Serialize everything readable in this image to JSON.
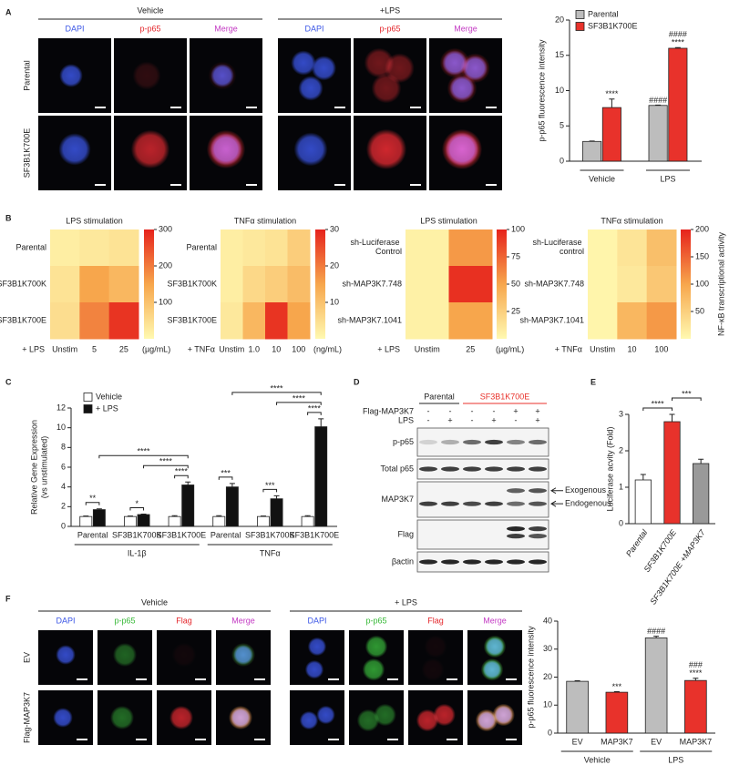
{
  "chart_data": [
    {
      "type": "micrograph",
      "letter": "A",
      "groups": [
        "Vehicle",
        "+LPS"
      ],
      "channels": [
        {
          "label": "DAPI",
          "color": "#3b56e6"
        },
        {
          "label": "p-p65",
          "color": "#e4262b"
        },
        {
          "label": "Merge",
          "color": "#c43cc4"
        }
      ],
      "rows": [
        "Parental",
        "SF3B1K700E"
      ]
    },
    {
      "type": "bar",
      "ylabel": "p-p65 fluorescence intensity",
      "categories": [
        "Vehicle",
        "LPS"
      ],
      "series": [
        {
          "name": "Parental",
          "color": "#bdbdbd",
          "values": [
            2.8,
            7.9
          ],
          "errors": [
            0.05,
            0.05
          ],
          "annotations": [
            {
              "index": 1,
              "labels": [
                "####"
              ]
            }
          ]
        },
        {
          "name": "SF3B1K700E",
          "color": "#e8322b",
          "values": [
            7.6,
            16
          ],
          "errors": [
            1.2,
            0.1
          ],
          "annotations": [
            {
              "index": 0,
              "labels": [
                "****"
              ]
            },
            {
              "index": 1,
              "labels": [
                "####",
                "****"
              ]
            }
          ]
        }
      ],
      "ylim": [
        0,
        20
      ],
      "yticks": [
        0,
        5,
        10,
        15,
        20
      ]
    },
    {
      "type": "heatmap",
      "letter": "B",
      "title": "LPS stimulation",
      "rows": [
        "Parental",
        "SF3B1K700K",
        "SF3B1K700E"
      ],
      "columns": [
        "Unstim",
        "5",
        "25"
      ],
      "x_prefix": "+ LPS",
      "unit": "(µg/mL)",
      "values": [
        [
          20,
          30,
          40
        ],
        [
          40,
          150,
          120
        ],
        [
          50,
          190,
          280
        ]
      ],
      "clim": [
        0,
        300
      ],
      "cticks": [
        100,
        200,
        300
      ]
    },
    {
      "type": "heatmap",
      "title": "TNFα stimulation",
      "rows": [
        "Parental",
        "SF3B1K700K",
        "SF3B1K700E"
      ],
      "columns": [
        "Unstim",
        "1.0",
        "10",
        "100"
      ],
      "x_prefix": "+ TNFα",
      "unit": "(ng/mL)",
      "values": [
        [
          2,
          3,
          4,
          8
        ],
        [
          2,
          6,
          8,
          11
        ],
        [
          3,
          12,
          28,
          15
        ]
      ],
      "clim": [
        0,
        30
      ],
      "cticks": [
        10,
        20,
        30
      ]
    },
    {
      "type": "heatmap",
      "title": "LPS stimulation",
      "rows": [
        "sh-Luciferase Control",
        "sh-MAP3K7.748",
        "sh-MAP3K7.1041"
      ],
      "columns": [
        "Unstim",
        "25"
      ],
      "x_prefix": "+ LPS",
      "unit": "(µg/mL)",
      "values": [
        [
          5,
          55
        ],
        [
          5,
          95
        ],
        [
          5,
          50
        ]
      ],
      "clim": [
        0,
        100
      ],
      "cticks": [
        25,
        50,
        75,
        100
      ]
    },
    {
      "type": "heatmap",
      "title": "TNFα stimulation",
      "rows": [
        "sh-Luciferase control",
        "sh-MAP3K7.748",
        "sh-MAP3K7.1041"
      ],
      "columns": [
        "Unstim",
        "10",
        "100"
      ],
      "x_prefix": "+ TNFα",
      "values": [
        [
          5,
          25,
          70
        ],
        [
          5,
          20,
          60
        ],
        [
          5,
          80,
          110
        ]
      ],
      "clim": [
        0,
        200
      ],
      "cticks": [
        50,
        100,
        150,
        200
      ],
      "colorbar_label": "NF-κB transcriptional activity"
    },
    {
      "type": "bar",
      "letter": "C",
      "ylabel": [
        "Relative Gene Expression",
        "(vs unstimulated)"
      ],
      "categories": [
        "Parental",
        "SF3B1K700K",
        "SF3B1K700E",
        "Parental",
        "SF3B1K700K",
        "SF3B1K700E"
      ],
      "groups": [
        {
          "label": "IL-1β",
          "categories": [
            0,
            2
          ]
        },
        {
          "label": "TNFα",
          "categories": [
            3,
            5
          ]
        }
      ],
      "series": [
        {
          "name": "Vehicle",
          "color": "#ffffff",
          "values": [
            1,
            1,
            1,
            1,
            1,
            1
          ],
          "errors": [
            0.05,
            0.05,
            0.08,
            0.08,
            0.05,
            0.08
          ]
        },
        {
          "name": "+ LPS",
          "color": "#111111",
          "values": [
            1.7,
            1.2,
            4.2,
            4.0,
            2.8,
            10.1
          ],
          "errors": [
            0.08,
            0.05,
            0.3,
            0.35,
            0.3,
            0.8
          ]
        }
      ],
      "brackets": [
        {
          "label": "**",
          "bars": [
            0,
            1
          ]
        },
        {
          "label": "*",
          "bars": [
            2,
            3
          ]
        },
        {
          "label": "****",
          "bars": [
            4,
            5
          ]
        },
        {
          "label": "****",
          "bars": [
            3,
            5
          ]
        },
        {
          "label": "****",
          "bars": [
            1,
            5
          ]
        },
        {
          "label": "***",
          "bars": [
            6,
            7
          ]
        },
        {
          "label": "***",
          "bars": [
            8,
            9
          ]
        },
        {
          "label": "****",
          "bars": [
            10,
            11
          ]
        },
        {
          "label": "****",
          "bars": [
            9,
            11
          ]
        },
        {
          "label": "****",
          "bars": [
            7,
            11
          ]
        }
      ],
      "ylim": [
        0,
        12
      ],
      "yticks": [
        0,
        2,
        4,
        6,
        8,
        10,
        12
      ]
    },
    {
      "type": "blot",
      "letter": "D",
      "header": [
        {
          "label": "Parental",
          "lanes": [
            0,
            1
          ]
        },
        {
          "label": "SF3B1K700E",
          "lanes": [
            2,
            5
          ],
          "color": "#e8322b"
        }
      ],
      "conditions": [
        {
          "label": "Flag-MAP3K7",
          "signs": [
            "-",
            "-",
            "-",
            "-",
            "+",
            "+"
          ]
        },
        {
          "label": "LPS",
          "signs": [
            "-",
            "+",
            "-",
            "+",
            "-",
            "+"
          ]
        }
      ],
      "rows": [
        "p-p65",
        "Total p65",
        "MAP3K7",
        "Flag",
        "βactin"
      ],
      "arrows": [
        "Exogenous",
        "Endogenous"
      ]
    },
    {
      "type": "bar",
      "letter": "E",
      "ylabel": "Luciferase acvity (Fold)",
      "categories": [
        "Parental",
        "SF3B1K700E",
        "SF3B1K700E +MAP3K7"
      ],
      "values": [
        1.2,
        2.8,
        1.65
      ],
      "errors": [
        0.15,
        0.2,
        0.12
      ],
      "colors": [
        "#ffffff",
        "#e8322b",
        "#999999"
      ],
      "brackets": [
        {
          "label": "****",
          "bars": [
            0,
            1
          ]
        },
        {
          "label": "***",
          "bars": [
            1,
            2
          ]
        }
      ],
      "ylim": [
        0,
        3
      ],
      "yticks": [
        0,
        1,
        2,
        3
      ]
    },
    {
      "type": "micrograph",
      "letter": "F",
      "groups": [
        "Vehicle",
        "+ LPS"
      ],
      "channels": [
        {
          "label": "DAPI",
          "color": "#3b56e6"
        },
        {
          "label": "p-p65",
          "color": "#35b835"
        },
        {
          "label": "Flag",
          "color": "#e4262b"
        },
        {
          "label": "Merge",
          "color": "#c43cc4"
        }
      ],
      "rows": [
        "EV",
        "Flag-MAP3K7"
      ]
    },
    {
      "type": "bar",
      "ylabel": "p-p65 fluorescence intensity",
      "categories": [
        "EV",
        "MAP3K7",
        "EV",
        "MAP3K7"
      ],
      "groups": [
        {
          "label": "Vehicle",
          "categories": [
            0,
            1
          ]
        },
        {
          "label": "LPS",
          "categories": [
            2,
            3
          ]
        }
      ],
      "values": [
        18.5,
        14.6,
        34,
        18.8
      ],
      "errors": [
        0.2,
        0.2,
        0.6,
        0.8
      ],
      "colors": [
        "#bdbdbd",
        "#e8322b",
        "#bdbdbd",
        "#e8322b"
      ],
      "annotations": [
        {
          "index": 1,
          "labels": [
            "***"
          ]
        },
        {
          "index": 2,
          "labels": [
            "####"
          ]
        },
        {
          "index": 3,
          "labels": [
            "###",
            "****"
          ]
        }
      ],
      "ylim": [
        0,
        40
      ],
      "yticks": [
        0,
        10,
        20,
        30,
        40
      ]
    }
  ]
}
